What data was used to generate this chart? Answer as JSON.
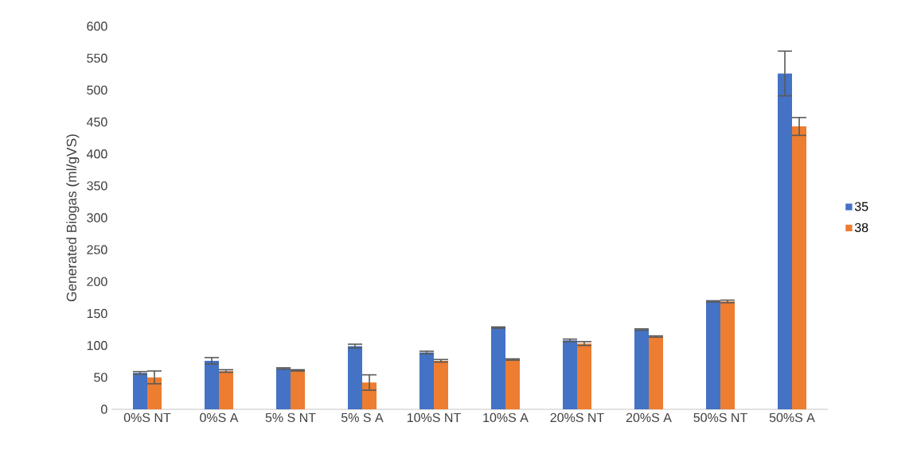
{
  "chart_data": {
    "type": "bar",
    "ylabel": "Generated Biogas (ml/gVS)",
    "categories": [
      "0%S NT",
      "0%S A",
      "5% S NT",
      "5% S A",
      "10%S NT",
      "10%S A",
      "20%S NT",
      "20%S A",
      "50%S NT",
      "50%S A"
    ],
    "series": [
      {
        "name": "35",
        "color": "#4472c4",
        "values": [
          57,
          76,
          64,
          99,
          89,
          128,
          108,
          125,
          169,
          526
        ],
        "errors": [
          2,
          5,
          1,
          3,
          2,
          1,
          2,
          1,
          1,
          35
        ]
      },
      {
        "name": "38",
        "color": "#ed7d31",
        "values": [
          50,
          60,
          61,
          42,
          76,
          78,
          103,
          114,
          169,
          443
        ],
        "errors": [
          10,
          2,
          1,
          12,
          2,
          1,
          3,
          1,
          2,
          14
        ]
      }
    ],
    "ylim": [
      0,
      600
    ],
    "yticks": [
      0,
      50,
      100,
      150,
      200,
      250,
      300,
      350,
      400,
      450,
      500,
      550,
      600
    ],
    "legend": "right",
    "grid": false
  }
}
